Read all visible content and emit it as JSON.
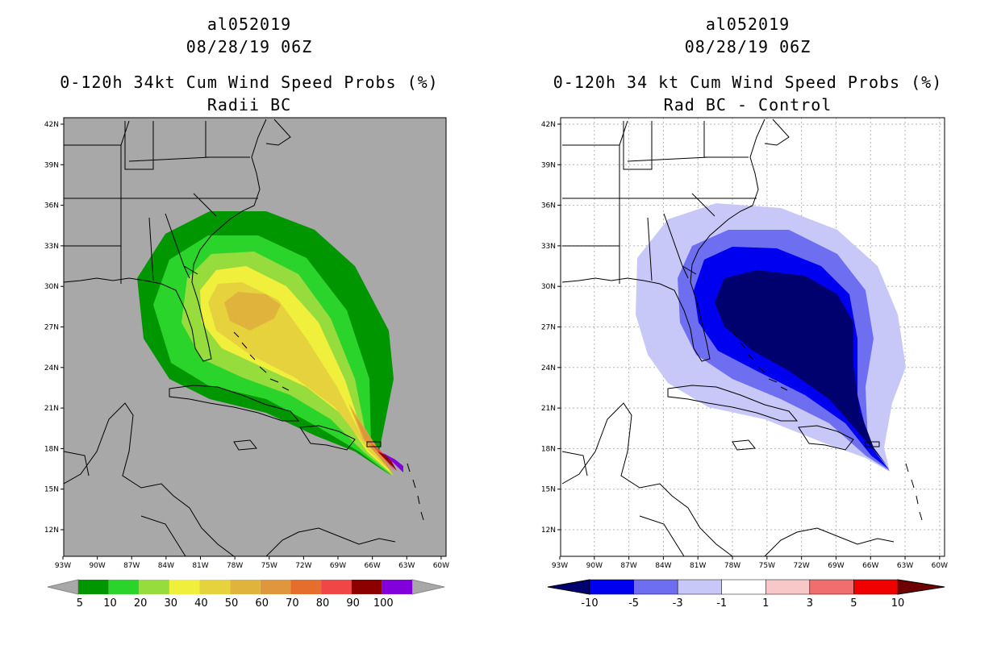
{
  "left": {
    "title_id": "al052019",
    "title_date": "08/28/19 06Z",
    "title_product": "0-120h 34kt Cum Wind Speed Probs (%)",
    "title_variant": "Radii BC",
    "background_color": "#a8a8a8",
    "colorbar": {
      "labels": [
        "5",
        "10",
        "20",
        "30",
        "40",
        "50",
        "60",
        "70",
        "80",
        "90",
        "100"
      ],
      "colors": [
        "#009600",
        "#2ad42a",
        "#96dc3c",
        "#f0f03c",
        "#e6d23c",
        "#e0b43c",
        "#e0963c",
        "#e66e2c",
        "#f04646",
        "#8c0000",
        "#8200dc"
      ],
      "under_color": "#a8a8a8",
      "over_color": "#a8a8a8"
    }
  },
  "right": {
    "title_id": "al052019",
    "title_date": "08/28/19 06Z",
    "title_product": "0-120h 34 kt Cum Wind Speed Probs (%)",
    "title_variant": "Rad BC - Control",
    "background_color": "#ffffff",
    "colorbar": {
      "labels": [
        "-10",
        "-5",
        "-3",
        "-1",
        "1",
        "3",
        "5",
        "10"
      ],
      "colors": [
        "#00006e",
        "#0000f0",
        "#6e6ef0",
        "#c8c8f8",
        "#ffffff",
        "#f8c8c8",
        "#f06e6e",
        "#f00000",
        "#6e0000"
      ]
    }
  },
  "axes": {
    "lat_labels": [
      "42N",
      "39N",
      "36N",
      "33N",
      "30N",
      "27N",
      "24N",
      "21N",
      "18N",
      "15N",
      "12N"
    ],
    "lon_labels": [
      "93W",
      "90W",
      "87W",
      "84W",
      "81W",
      "78W",
      "75W",
      "72W",
      "69W",
      "66W",
      "63W",
      "60W"
    ]
  }
}
